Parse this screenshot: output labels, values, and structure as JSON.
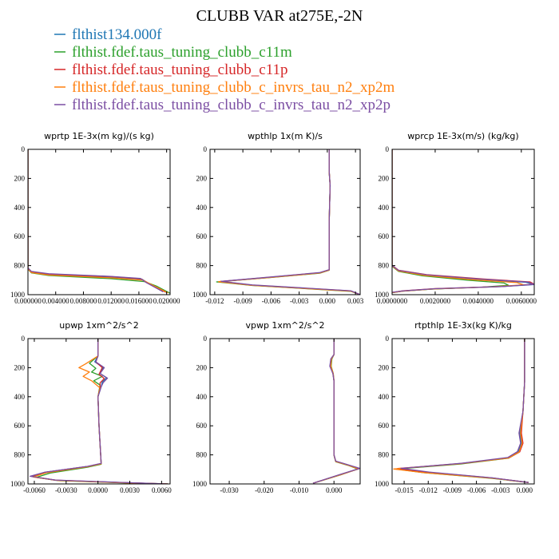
{
  "figure": {
    "title": "CLUBB VAR at275E,-2N"
  },
  "legend": [
    {
      "label": "flthist134.000f",
      "color": "#1f77b4"
    },
    {
      "label": "flthist.fdef.taus_tuning_clubb_c11m",
      "color": "#2ca02c"
    },
    {
      "label": "flthist.fdef.taus_tuning_clubb_c11p",
      "color": "#d62728"
    },
    {
      "label": "flthist.fdef.taus_tuning_clubb_c_invrs_tau_n2_xp2m",
      "color": "#ff7f0e"
    },
    {
      "label": "flthist.fdef.taus_tuning_clubb_c_invrs_tau_n2_xp2p",
      "color": "#7b4ea3"
    }
  ],
  "chart_data": [
    {
      "type": "line",
      "title": "wprtp  1E-3x(m kg)/(s kg)",
      "xlim": [
        0.0,
        0.0205
      ],
      "ylim": [
        1000,
        0
      ],
      "xticks": [
        "0.000000",
        "0.004000",
        "0.008000",
        "0.012000",
        "0.016000",
        "0.020000"
      ],
      "xtick_values": [
        0.0,
        0.004,
        0.008,
        0.012,
        0.016,
        0.02
      ],
      "yticks": [
        0,
        200,
        400,
        600,
        800,
        1000
      ],
      "series": [
        {
          "color": "#1f77b4",
          "x": [
            0,
            0,
            0.0005,
            0.003,
            0.012,
            0.0165,
            0.0175,
            0.02
          ],
          "y": [
            0,
            820,
            845,
            862,
            880,
            895,
            925,
            985
          ]
        },
        {
          "color": "#2ca02c",
          "x": [
            0,
            0,
            0.0005,
            0.003,
            0.012,
            0.0168,
            0.0185,
            0.0205
          ],
          "y": [
            0,
            825,
            850,
            868,
            890,
            910,
            940,
            990
          ]
        },
        {
          "color": "#d62728",
          "x": [
            0,
            0,
            0.0005,
            0.003,
            0.012,
            0.0163,
            0.0172,
            0.0198
          ],
          "y": [
            0,
            818,
            842,
            858,
            876,
            890,
            918,
            982
          ]
        },
        {
          "color": "#ff7f0e",
          "x": [
            0,
            0,
            0.0005,
            0.003,
            0.012,
            0.0166,
            0.0178,
            0.0202
          ],
          "y": [
            0,
            822,
            848,
            865,
            884,
            900,
            930,
            988
          ]
        },
        {
          "color": "#7b4ea3",
          "x": [
            0,
            0,
            0.0005,
            0.003,
            0.012,
            0.0162,
            0.017,
            0.0195
          ],
          "y": [
            0,
            816,
            840,
            856,
            874,
            888,
            915,
            980
          ]
        }
      ]
    },
    {
      "type": "line",
      "title": "wpthlp  1x(m K)/s",
      "xlim": [
        -0.0125,
        0.0035
      ],
      "ylim": [
        1000,
        0
      ],
      "xticks": [
        "-0.012",
        "-0.009",
        "-0.006",
        "-0.003",
        "0.000",
        "0.003"
      ],
      "xtick_values": [
        -0.012,
        -0.009,
        -0.006,
        -0.003,
        0.0,
        0.003
      ],
      "yticks": [
        0,
        200,
        400,
        600,
        800,
        1000
      ],
      "series": [
        {
          "color": "#1f77b4",
          "x": [
            0.0002,
            0.0002,
            0.0003,
            0.0002,
            0.0002,
            -0.0008,
            -0.006,
            -0.0115,
            -0.008,
            0.0025,
            0.0035
          ],
          "y": [
            0,
            150,
            250,
            500,
            830,
            850,
            880,
            910,
            935,
            975,
            1000
          ]
        },
        {
          "color": "#2ca02c",
          "x": [
            0.0002,
            0.0002,
            0.0003,
            0.0002,
            0.0002,
            -0.0008,
            -0.006,
            -0.0118,
            -0.008,
            0.0025,
            0.0035
          ],
          "y": [
            0,
            150,
            250,
            500,
            832,
            852,
            882,
            912,
            937,
            977,
            1000
          ]
        },
        {
          "color": "#d62728",
          "x": [
            0.0002,
            0.0002,
            0.0003,
            0.0002,
            0.0002,
            -0.0008,
            -0.006,
            -0.0114,
            -0.008,
            0.0025,
            0.0035
          ],
          "y": [
            0,
            150,
            250,
            500,
            829,
            849,
            879,
            909,
            934,
            974,
            1000
          ]
        },
        {
          "color": "#ff7f0e",
          "x": [
            0.0002,
            0.0002,
            0.0003,
            0.0002,
            0.0002,
            -0.0008,
            -0.006,
            -0.0116,
            -0.008,
            0.0025,
            0.0035
          ],
          "y": [
            0,
            150,
            250,
            500,
            831,
            851,
            881,
            911,
            936,
            976,
            1000
          ]
        },
        {
          "color": "#7b4ea3",
          "x": [
            0.0002,
            0.0002,
            0.0003,
            0.0002,
            0.0002,
            -0.0008,
            -0.006,
            -0.0113,
            -0.008,
            0.0025,
            0.0035
          ],
          "y": [
            0,
            150,
            250,
            500,
            828,
            848,
            878,
            908,
            933,
            973,
            1000
          ]
        }
      ]
    },
    {
      "type": "line",
      "title": "wprcp  1E-3x(m/s) (kg/kg)",
      "xlim": [
        0.0,
        0.0066
      ],
      "ylim": [
        1000,
        0
      ],
      "xticks": [
        "0.0000000",
        "0.0020000",
        "0.0040000",
        "0.0060000"
      ],
      "xtick_values": [
        0.0,
        0.002,
        0.004,
        0.006
      ],
      "yticks": [
        0,
        200,
        400,
        600,
        800,
        1000
      ],
      "series": [
        {
          "color": "#1f77b4",
          "x": [
            0,
            0,
            0.0003,
            0.0015,
            0.004,
            0.0062,
            0.0066,
            0.005,
            0.002,
            0.0005,
            0
          ],
          "y": [
            0,
            800,
            835,
            865,
            895,
            915,
            930,
            945,
            960,
            975,
            985
          ]
        },
        {
          "color": "#2ca02c",
          "x": [
            0,
            0,
            0.0003,
            0.0014,
            0.0035,
            0.0052,
            0.0054,
            0.0042,
            0.0018,
            0.0004,
            0
          ],
          "y": [
            0,
            805,
            840,
            870,
            900,
            920,
            935,
            948,
            962,
            977,
            987
          ]
        },
        {
          "color": "#d62728",
          "x": [
            0,
            0,
            0.0003,
            0.0016,
            0.0042,
            0.0064,
            0.0066,
            0.0052,
            0.002,
            0.0005,
            0
          ],
          "y": [
            0,
            798,
            832,
            862,
            892,
            912,
            928,
            943,
            958,
            973,
            984
          ]
        },
        {
          "color": "#ff7f0e",
          "x": [
            0,
            0,
            0.0003,
            0.0015,
            0.0038,
            0.0058,
            0.0061,
            0.0047,
            0.0019,
            0.0005,
            0
          ],
          "y": [
            0,
            802,
            837,
            867,
            897,
            917,
            932,
            946,
            961,
            976,
            986
          ]
        },
        {
          "color": "#7b4ea3",
          "x": [
            0,
            0,
            0.0003,
            0.0016,
            0.0041,
            0.0063,
            0.0066,
            0.0051,
            0.002,
            0.0005,
            0
          ],
          "y": [
            0,
            799,
            833,
            863,
            893,
            913,
            929,
            944,
            959,
            974,
            984
          ]
        }
      ]
    },
    {
      "type": "line",
      "title": "upwp  1xm^2/s^2",
      "xlim": [
        -0.0066,
        0.0068
      ],
      "ylim": [
        1000,
        0
      ],
      "xticks": [
        "-0.0060",
        "-0.0030",
        "0.0000",
        "0.0030",
        "0.0060"
      ],
      "xtick_values": [
        -0.006,
        -0.003,
        0.0,
        0.003,
        0.006
      ],
      "yticks": [
        0,
        200,
        400,
        600,
        800,
        1000
      ],
      "series": [
        {
          "color": "#1f77b4",
          "x": [
            0,
            0,
            -0.0003,
            0.0005,
            0.0002,
            0.0008,
            0.0004,
            0.0003,
            0,
            0.0001,
            0.0003,
            -0.001,
            -0.005,
            -0.0062,
            -0.004,
            0.002,
            0.0066
          ],
          "y": [
            0,
            120,
            160,
            200,
            240,
            270,
            300,
            330,
            400,
            600,
            860,
            880,
            920,
            950,
            975,
            990,
            1000
          ]
        },
        {
          "color": "#2ca02c",
          "x": [
            0,
            0,
            -0.0008,
            -0.0002,
            -0.0006,
            0.0004,
            -0.0004,
            0.0002,
            0,
            0.0001,
            0.0003,
            -0.001,
            -0.0045,
            -0.0058,
            -0.0036,
            0.002,
            0.0066
          ],
          "y": [
            0,
            120,
            170,
            205,
            230,
            260,
            290,
            320,
            400,
            600,
            865,
            885,
            925,
            955,
            978,
            992,
            1000
          ]
        },
        {
          "color": "#d62728",
          "x": [
            0,
            0,
            -0.0002,
            0.0004,
            0.0001,
            0.0006,
            0.0002,
            0.0002,
            0,
            0.0001,
            0.0003,
            -0.001,
            -0.005,
            -0.0063,
            -0.004,
            0.002,
            0.0066
          ],
          "y": [
            0,
            120,
            160,
            200,
            245,
            275,
            305,
            335,
            400,
            600,
            860,
            880,
            920,
            948,
            974,
            990,
            1000
          ]
        },
        {
          "color": "#ff7f0e",
          "x": [
            0,
            0,
            -0.0012,
            -0.0018,
            -0.0008,
            -0.0014,
            -0.0006,
            0.0002,
            0,
            0.0001,
            0.0003,
            -0.001,
            -0.0048,
            -0.0061,
            -0.0038,
            0.002,
            0.0066
          ],
          "y": [
            0,
            120,
            175,
            200,
            230,
            260,
            290,
            340,
            400,
            600,
            862,
            882,
            922,
            952,
            976,
            991,
            1000
          ]
        },
        {
          "color": "#7b4ea3",
          "x": [
            0,
            0,
            -0.0002,
            0.0006,
            0.0002,
            0.0009,
            0.0005,
            0.0003,
            0,
            0.0001,
            0.0003,
            -0.001,
            -0.005,
            -0.0064,
            -0.004,
            0.002,
            0.0066
          ],
          "y": [
            0,
            120,
            160,
            200,
            240,
            272,
            302,
            332,
            400,
            600,
            859,
            879,
            919,
            947,
            973,
            989,
            1000
          ]
        }
      ]
    },
    {
      "type": "line",
      "title": "vpwp  1xm^2/s^2",
      "xlim": [
        -0.0355,
        0.0075
      ],
      "ylim": [
        1000,
        0
      ],
      "xticks": [
        "-0.030",
        "-0.020",
        "-0.010",
        "0.000"
      ],
      "xtick_values": [
        -0.03,
        -0.02,
        -0.01,
        0.0
      ],
      "yticks": [
        0,
        200,
        400,
        600,
        800,
        1000
      ],
      "series": [
        {
          "color": "#1f77b4",
          "x": [
            0,
            0,
            -0.0008,
            -0.001,
            -0.0003,
            0,
            0,
            0.0005,
            0.004,
            0.0072,
            0.002,
            -0.006
          ],
          "y": [
            0,
            110,
            140,
            190,
            240,
            290,
            800,
            845,
            870,
            895,
            935,
            995
          ]
        },
        {
          "color": "#2ca02c",
          "x": [
            0,
            0,
            -0.0006,
            -0.0008,
            -0.0002,
            0,
            0,
            0.0005,
            0.004,
            0.0068,
            0.002,
            -0.006
          ],
          "y": [
            0,
            110,
            140,
            190,
            240,
            290,
            802,
            847,
            872,
            897,
            937,
            995
          ]
        },
        {
          "color": "#d62728",
          "x": [
            0,
            0,
            -0.0009,
            -0.0011,
            -0.0003,
            0,
            0,
            0.0005,
            0.004,
            0.0073,
            0.002,
            -0.006
          ],
          "y": [
            0,
            110,
            140,
            190,
            240,
            290,
            800,
            844,
            869,
            894,
            934,
            995
          ]
        },
        {
          "color": "#ff7f0e",
          "x": [
            0,
            0,
            -0.0007,
            -0.0009,
            -0.0002,
            0,
            0,
            0.0005,
            0.004,
            0.007,
            0.002,
            -0.006
          ],
          "y": [
            0,
            110,
            140,
            190,
            240,
            290,
            801,
            846,
            871,
            896,
            936,
            995
          ]
        },
        {
          "color": "#7b4ea3",
          "x": [
            0,
            0,
            -0.0009,
            -0.0012,
            -0.0003,
            0,
            0,
            0.0005,
            0.004,
            0.0074,
            0.002,
            -0.006
          ],
          "y": [
            0,
            110,
            140,
            190,
            240,
            290,
            799,
            843,
            868,
            893,
            933,
            995
          ]
        }
      ]
    },
    {
      "type": "line",
      "title": "rtpthlp  1E-3x(kg K)/kg",
      "xlim": [
        -0.0165,
        0.0012
      ],
      "ylim": [
        1000,
        0
      ],
      "xticks": [
        "-0.015",
        "-0.012",
        "-0.009",
        "-0.006",
        "-0.003",
        "0.000"
      ],
      "xtick_values": [
        -0.015,
        -0.012,
        -0.009,
        -0.006,
        -0.003,
        0.0
      ],
      "yticks": [
        0,
        200,
        400,
        600,
        800,
        1000
      ],
      "series": [
        {
          "color": "#1f77b4",
          "x": [
            0,
            0,
            -0.0002,
            -0.0006,
            -0.0004,
            -0.0008,
            -0.002,
            -0.008,
            -0.0155,
            -0.012,
            -0.004,
            0.0005
          ],
          "y": [
            0,
            300,
            500,
            650,
            720,
            780,
            820,
            860,
            895,
            920,
            960,
            990
          ]
        },
        {
          "color": "#2ca02c",
          "x": [
            0,
            0,
            -0.0002,
            -0.0005,
            -0.0003,
            -0.0007,
            -0.002,
            -0.008,
            -0.016,
            -0.0125,
            -0.004,
            0.0005
          ],
          "y": [
            0,
            300,
            500,
            650,
            720,
            782,
            823,
            863,
            898,
            923,
            962,
            990
          ]
        },
        {
          "color": "#d62728",
          "x": [
            0,
            0,
            -0.0002,
            -0.0004,
            -0.0002,
            -0.0006,
            -0.0019,
            -0.0078,
            -0.0158,
            -0.0122,
            -0.004,
            0.0005
          ],
          "y": [
            0,
            300,
            500,
            650,
            720,
            779,
            819,
            859,
            894,
            919,
            959,
            990
          ]
        },
        {
          "color": "#ff7f0e",
          "x": [
            0,
            0,
            -0.0002,
            -0.0005,
            -0.0003,
            -0.0007,
            -0.002,
            -0.0082,
            -0.0163,
            -0.0126,
            -0.004,
            0.0005
          ],
          "y": [
            0,
            300,
            500,
            650,
            720,
            781,
            822,
            862,
            897,
            922,
            961,
            990
          ]
        },
        {
          "color": "#7b4ea3",
          "x": [
            0,
            0,
            -0.0002,
            -0.0007,
            -0.0005,
            -0.0009,
            -0.0021,
            -0.0079,
            -0.0154,
            -0.0119,
            -0.004,
            0.0005
          ],
          "y": [
            0,
            300,
            500,
            650,
            720,
            778,
            818,
            858,
            893,
            918,
            958,
            990
          ]
        }
      ]
    }
  ]
}
